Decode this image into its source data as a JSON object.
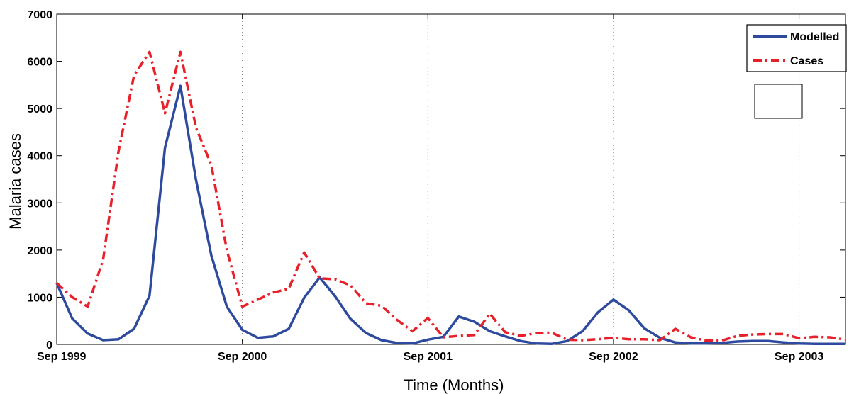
{
  "chart_data": {
    "type": "line",
    "title": "",
    "xlabel": "Time (Months)",
    "ylabel": "Malaria cases",
    "ylim": [
      0,
      7000
    ],
    "xlim": [
      0,
      51
    ],
    "yticks": [
      0,
      1000,
      2000,
      3000,
      4000,
      5000,
      6000,
      7000
    ],
    "xticks": [
      {
        "pos": 0,
        "label": "Sep 1999"
      },
      {
        "pos": 12,
        "label": "Sep 2000"
      },
      {
        "pos": 24,
        "label": "Sep 2001"
      },
      {
        "pos": 36,
        "label": "Sep 2002"
      },
      {
        "pos": 48,
        "label": "Sep 2003"
      }
    ],
    "grid": "vertical dotted at year ticks",
    "legend_position": "top-right",
    "series": [
      {
        "name": "Modelled",
        "color": "#2e4a9e",
        "style": "solid",
        "values": [
          1300,
          550,
          230,
          90,
          110,
          330,
          1030,
          4170,
          5480,
          3500,
          1880,
          800,
          310,
          140,
          170,
          330,
          990,
          1420,
          1020,
          540,
          240,
          90,
          30,
          20,
          100,
          160,
          590,
          480,
          280,
          170,
          70,
          20,
          10,
          70,
          280,
          680,
          950,
          720,
          340,
          140,
          40,
          20,
          20,
          30,
          60,
          70,
          70,
          40,
          20,
          10,
          10,
          10
        ]
      },
      {
        "name": "Cases",
        "color": "#e8202a",
        "style": "dashdot",
        "values": [
          1300,
          1000,
          800,
          1800,
          4100,
          5700,
          6200,
          4900,
          6200,
          4600,
          3800,
          2000,
          800,
          950,
          1100,
          1180,
          1950,
          1400,
          1380,
          1250,
          870,
          820,
          520,
          280,
          560,
          150,
          180,
          200,
          650,
          260,
          180,
          240,
          250,
          100,
          90,
          110,
          140,
          110,
          110,
          90,
          330,
          150,
          80,
          80,
          180,
          210,
          220,
          220,
          130,
          160,
          150,
          100
        ]
      }
    ]
  }
}
